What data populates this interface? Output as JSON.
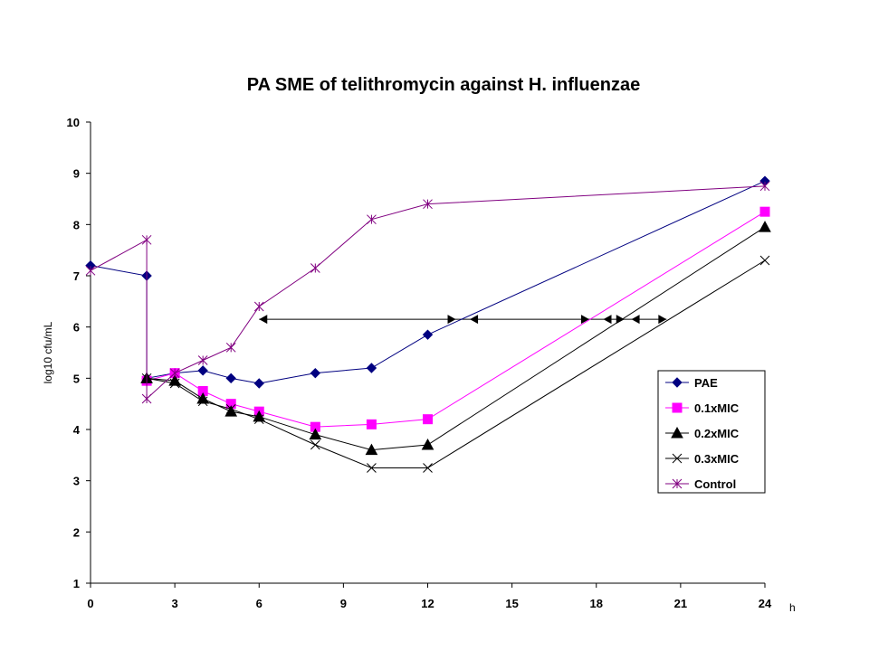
{
  "chart_data": {
    "type": "line",
    "title": "PA SME of telithromycin against H. influenzae",
    "xlabel": "h",
    "ylabel": "log10 cfu/mL",
    "xlim": [
      0,
      24
    ],
    "ylim": [
      1,
      10
    ],
    "xticks": [
      0,
      3,
      6,
      9,
      12,
      15,
      18,
      21,
      24
    ],
    "yticks": [
      1,
      2,
      3,
      4,
      5,
      6,
      7,
      8,
      9,
      10
    ],
    "grid": false,
    "legend_position": "right",
    "series": [
      {
        "name": "PAE",
        "color": "#000080",
        "marker": "diamond",
        "x": [
          0,
          2,
          2,
          3,
          4,
          5,
          6,
          8,
          10,
          12,
          24
        ],
        "y": [
          7.2,
          7.0,
          5.0,
          5.1,
          5.15,
          5.0,
          4.9,
          5.1,
          5.2,
          5.85,
          8.85
        ]
      },
      {
        "name": "0.1xMIC",
        "color": "#ff00ff",
        "marker": "square",
        "x": [
          2,
          3,
          4,
          5,
          6,
          8,
          10,
          12,
          24
        ],
        "y": [
          4.95,
          5.1,
          4.75,
          4.5,
          4.35,
          4.05,
          4.1,
          4.2,
          8.25
        ]
      },
      {
        "name": "0.2xMIC",
        "color": "#000000",
        "marker": "triangle",
        "x": [
          2,
          3,
          4,
          5,
          6,
          8,
          10,
          12,
          24
        ],
        "y": [
          5.0,
          4.95,
          4.6,
          4.35,
          4.25,
          3.9,
          3.6,
          3.7,
          7.95
        ]
      },
      {
        "name": "0.3xMIC",
        "color": "#000000",
        "marker": "x",
        "x": [
          2,
          3,
          4,
          5,
          6,
          8,
          10,
          12,
          24
        ],
        "y": [
          5.0,
          4.9,
          4.55,
          4.4,
          4.2,
          3.7,
          3.25,
          3.25,
          7.3
        ]
      },
      {
        "name": "Control",
        "color": "#800080",
        "marker": "asterisk",
        "x": [
          0,
          2,
          2,
          3,
          4,
          5,
          6,
          8,
          10,
          12,
          24
        ],
        "y": [
          7.1,
          7.7,
          4.6,
          5.1,
          5.35,
          5.6,
          6.4,
          7.15,
          8.1,
          8.4,
          8.75
        ]
      }
    ],
    "annotations": {
      "type": "double-arrow-line",
      "y": 6.15,
      "x_start": 6,
      "x_end": 20.5,
      "arrowheads": [
        13.0,
        13.5,
        17.75,
        18.25,
        19.0,
        19.25
      ]
    }
  }
}
